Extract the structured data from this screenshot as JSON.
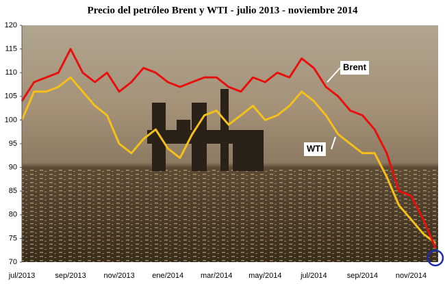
{
  "chart_data": {
    "type": "line",
    "title": "Precio del petróleo Brent y WTI - julio 2013 - noviembre 2014",
    "categories": [
      "jul/2013",
      null,
      null,
      null,
      "sep/2013",
      null,
      null,
      null,
      "nov/2013",
      null,
      null,
      null,
      "ene/2014",
      null,
      null,
      null,
      "mar/2014",
      null,
      null,
      null,
      "may/2014",
      null,
      null,
      null,
      "jul/2014",
      null,
      null,
      null,
      "sep/2014",
      null,
      null,
      null,
      "nov/2014",
      null,
      null
    ],
    "series": [
      {
        "name": "Brent",
        "color": "#e8100c",
        "values": [
          104,
          108,
          109,
          110,
          115,
          110,
          108,
          110,
          106,
          108,
          111,
          110,
          108,
          107,
          108,
          109,
          109,
          107,
          106,
          109,
          108,
          110,
          109,
          113,
          111,
          107,
          105,
          102,
          101,
          98,
          93,
          85,
          84,
          79,
          73
        ]
      },
      {
        "name": "WTI",
        "color": "#f5c01a",
        "values": [
          100,
          106,
          106,
          107,
          109,
          106,
          103,
          101,
          95,
          93,
          96,
          98,
          94,
          92,
          97,
          101,
          102,
          99,
          101,
          103,
          100,
          101,
          103,
          106,
          104,
          101,
          97,
          95,
          93,
          93,
          88,
          82,
          79,
          76,
          74
        ]
      }
    ],
    "ylim": [
      70,
      120
    ],
    "yticks": [
      70,
      75,
      80,
      85,
      90,
      95,
      100,
      105,
      110,
      115,
      120
    ]
  }
}
